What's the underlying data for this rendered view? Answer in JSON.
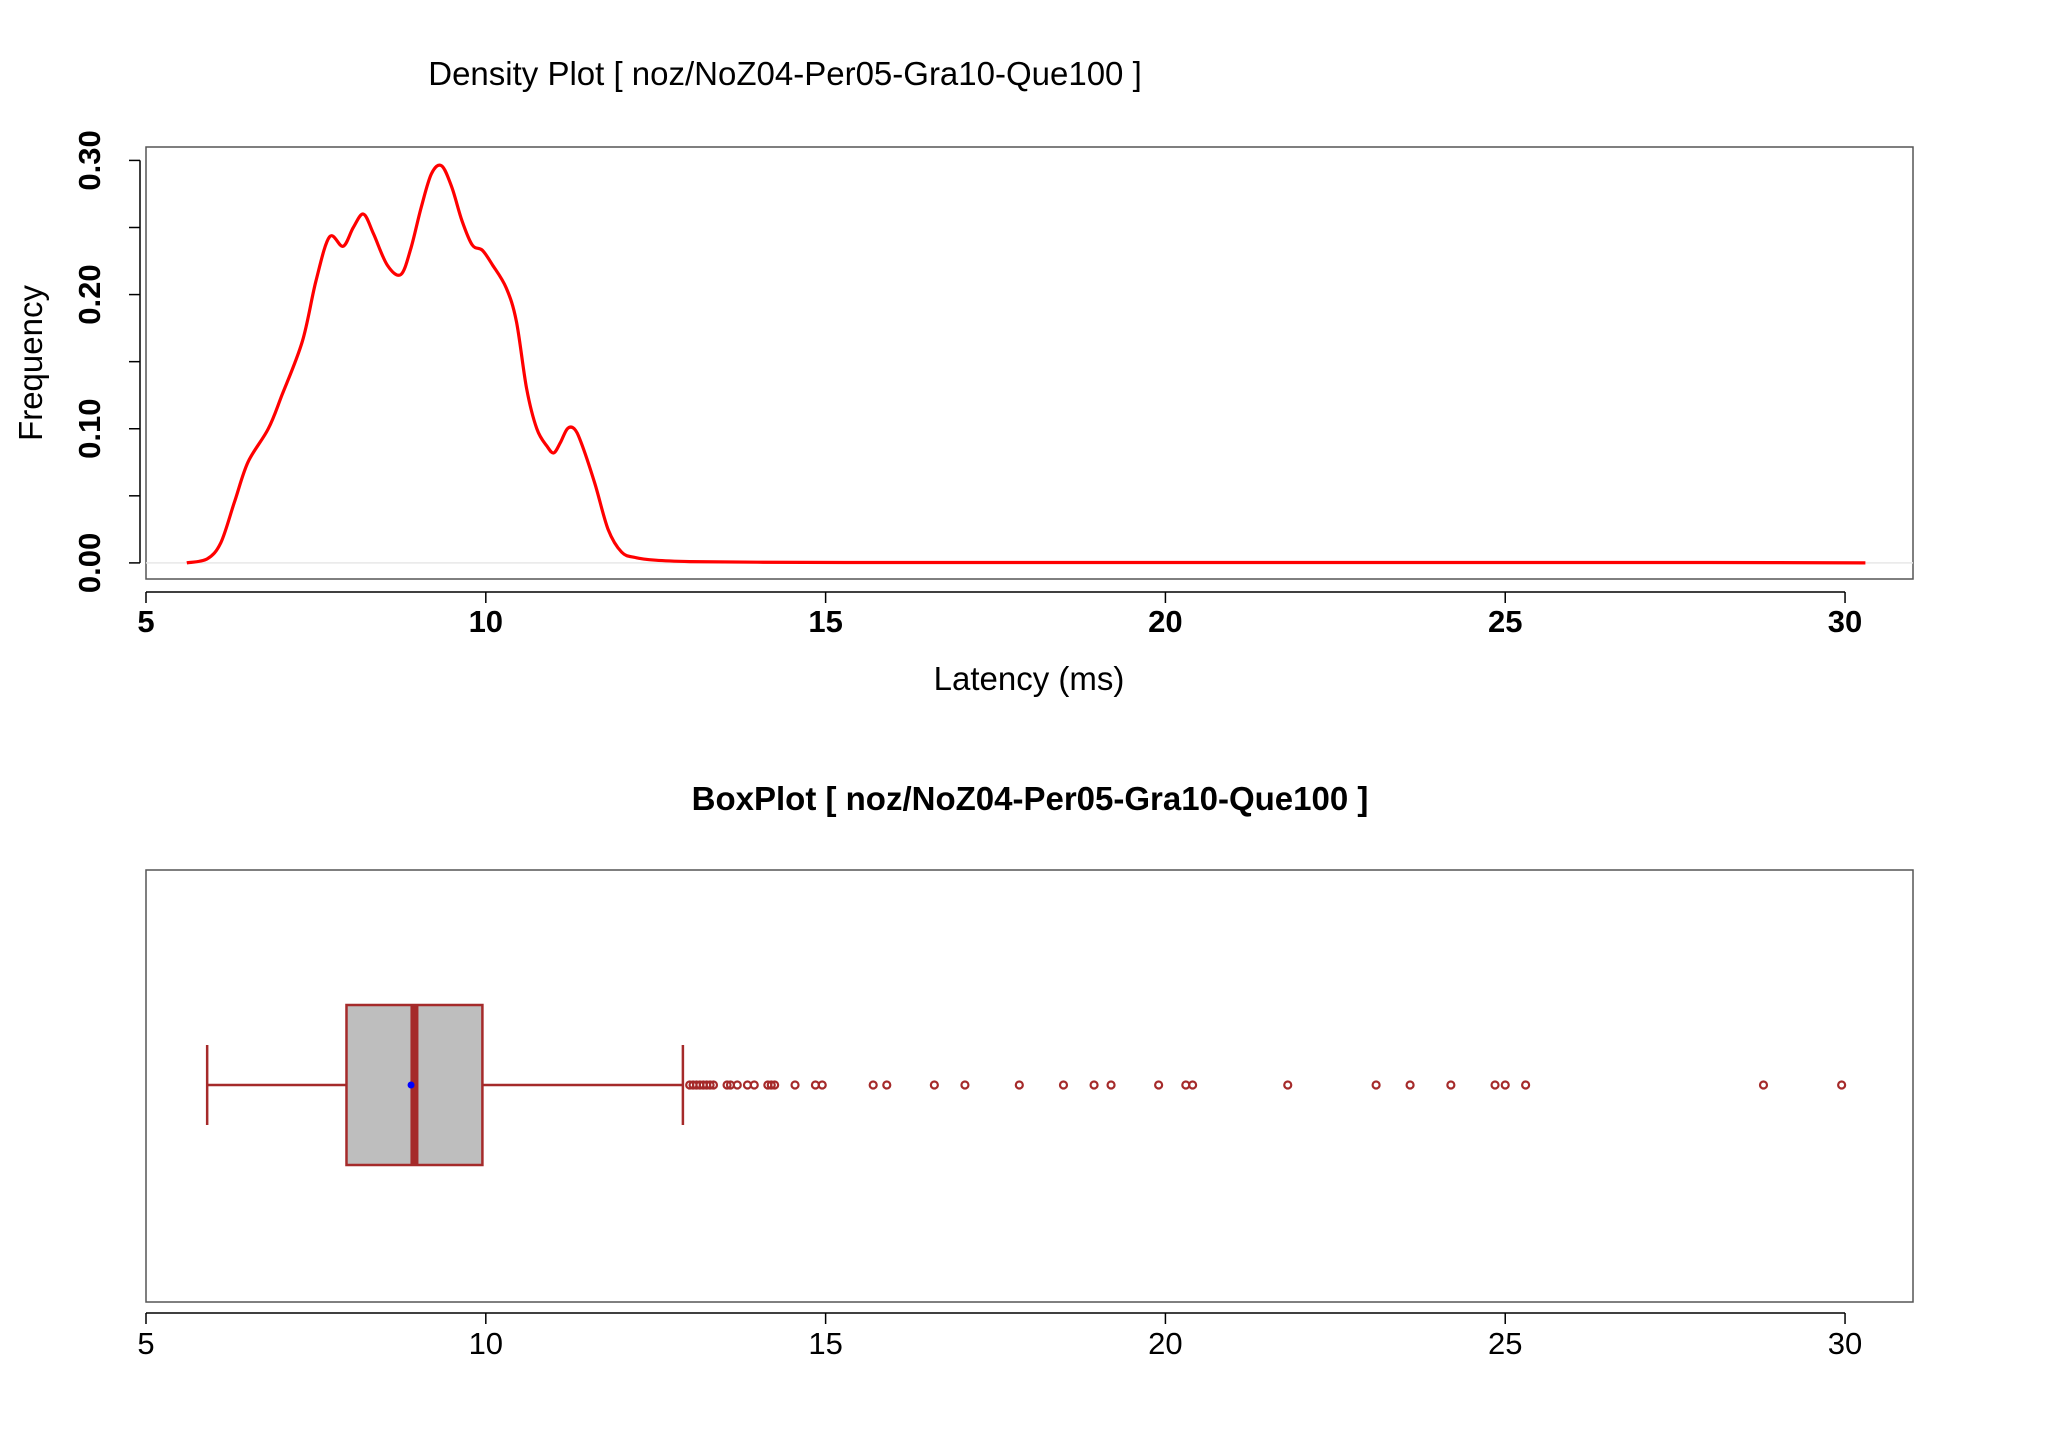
{
  "chart_data": [
    {
      "type": "line",
      "title": "Density Plot [ noz/NoZ04-Per05-Gra10-Que100 ]",
      "xlabel": "Latency (ms)",
      "ylabel": "Frequency",
      "xlim": [
        5,
        31
      ],
      "ylim": [
        -0.012,
        0.31
      ],
      "x_ticks": [
        "5",
        "10",
        "15",
        "20",
        "25",
        "30"
      ],
      "y_ticks": [
        "0.00",
        "0.10",
        "0.20",
        "0.30"
      ],
      "grid": false,
      "line_color": "#ff0000",
      "series": [
        {
          "x": [
            5.6,
            5.9,
            6.1,
            6.3,
            6.5,
            6.8,
            7.0,
            7.3,
            7.5,
            7.7,
            7.9,
            8.05,
            8.2,
            8.35,
            8.55,
            8.75,
            8.9,
            9.05,
            9.2,
            9.35,
            9.5,
            9.65,
            9.8,
            9.95,
            10.1,
            10.3,
            10.45,
            10.6,
            10.75,
            10.9,
            11.0,
            11.1,
            11.2,
            11.3,
            11.4,
            11.6,
            11.8,
            12.0,
            12.2,
            12.5,
            13.0,
            14.0,
            16.0,
            18.0,
            20.0,
            22.0,
            24.0,
            26.0,
            28.0,
            30.3
          ],
          "y": [
            0.0,
            0.003,
            0.015,
            0.045,
            0.075,
            0.1,
            0.125,
            0.165,
            0.21,
            0.243,
            0.236,
            0.25,
            0.26,
            0.245,
            0.222,
            0.215,
            0.235,
            0.265,
            0.29,
            0.296,
            0.28,
            0.255,
            0.237,
            0.233,
            0.222,
            0.205,
            0.18,
            0.13,
            0.1,
            0.087,
            0.082,
            0.09,
            0.1,
            0.1,
            0.09,
            0.06,
            0.025,
            0.008,
            0.004,
            0.002,
            0.001,
            0.0005,
            0.0003,
            0.0003,
            0.0003,
            0.0003,
            0.0003,
            0.0003,
            0.0003,
            0.0
          ]
        }
      ]
    },
    {
      "type": "box",
      "title": "BoxPlot [ noz/NoZ04-Per05-Gra10-Que100 ]",
      "xlim": [
        5,
        31
      ],
      "x_ticks": [
        "5",
        "10",
        "15",
        "20",
        "25",
        "30"
      ],
      "color": "#a52a2a",
      "fill": "#bebebe",
      "mean_color": "#0000ff",
      "whisker_low": 5.9,
      "q1": 7.95,
      "median": 8.95,
      "mean": 8.9,
      "q3": 9.95,
      "whisker_high": 12.9,
      "outliers": [
        13.0,
        13.05,
        13.1,
        13.15,
        13.2,
        13.25,
        13.3,
        13.35,
        13.55,
        13.6,
        13.7,
        13.85,
        13.95,
        14.15,
        14.2,
        14.25,
        14.55,
        14.85,
        14.95,
        15.7,
        15.9,
        16.6,
        17.05,
        17.85,
        18.5,
        18.95,
        19.2,
        19.9,
        20.3,
        20.4,
        21.8,
        23.1,
        23.6,
        24.2,
        24.85,
        25.0,
        25.3,
        28.8,
        29.95
      ]
    }
  ]
}
